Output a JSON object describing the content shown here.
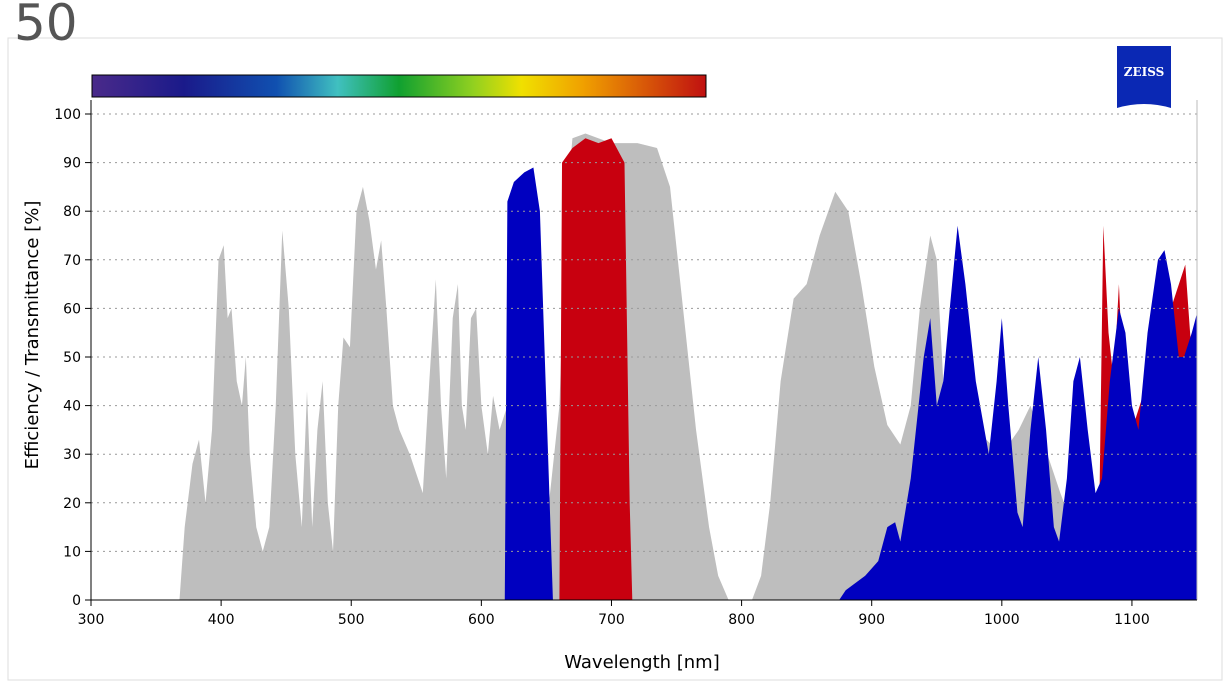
{
  "page_number": "50",
  "logo_text": "ZEISS",
  "chart_data": {
    "type": "area",
    "x_label": "Wavelength [nm]",
    "y_label": "Efficiency / Transmittance [%]",
    "xlim": [
      300,
      1150
    ],
    "ylim": [
      0,
      100
    ],
    "xticks": [
      300,
      400,
      500,
      600,
      700,
      800,
      900,
      1000,
      1100
    ],
    "yticks": [
      0,
      10,
      20,
      30,
      40,
      50,
      60,
      70,
      80,
      90,
      100
    ],
    "grid": true,
    "series": [
      {
        "color": "#bebebe",
        "x": [
          300,
          368,
          372,
          378,
          383,
          388,
          393,
          398,
          402,
          405,
          408,
          412,
          416,
          419,
          422,
          427,
          432,
          437,
          442,
          447,
          452,
          457,
          462,
          466,
          470,
          474,
          478,
          482,
          486,
          490,
          494,
          499,
          504,
          509,
          514,
          519,
          523,
          527,
          532,
          537,
          545,
          555,
          560,
          565,
          569,
          573,
          578,
          582,
          585,
          588,
          592,
          596,
          600,
          605,
          609,
          614,
          620,
          640,
          652,
          660,
          665,
          670,
          680,
          700,
          720,
          735,
          745,
          755,
          765,
          775,
          782,
          790,
          808,
          815,
          822,
          830,
          840,
          850,
          860,
          872,
          882,
          892,
          902,
          912,
          922,
          930,
          937,
          945,
          950,
          955,
          960,
          1000,
          1013,
          1022,
          1035,
          1045,
          1055,
          1070,
          1150
        ],
        "values": [
          0,
          0,
          15,
          28,
          33,
          20,
          35,
          70,
          73,
          58,
          60,
          45,
          40,
          50,
          30,
          15,
          10,
          15,
          40,
          76,
          60,
          30,
          15,
          43,
          15,
          35,
          45,
          20,
          10,
          40,
          54,
          52,
          80,
          85,
          78,
          68,
          74,
          60,
          40,
          35,
          30,
          22,
          45,
          66,
          40,
          25,
          58,
          65,
          40,
          35,
          58,
          60,
          40,
          30,
          42,
          35,
          40,
          30,
          20,
          40,
          80,
          95,
          96,
          94,
          94,
          93,
          85,
          60,
          35,
          15,
          5,
          0,
          0,
          5,
          20,
          45,
          62,
          65,
          75,
          84,
          80,
          65,
          48,
          36,
          32,
          40,
          60,
          75,
          70,
          45,
          40,
          30,
          35,
          40,
          30,
          22,
          15,
          10,
          10
        ]
      },
      {
        "color": "#c8000f",
        "x": [
          660,
          662,
          670,
          680,
          690,
          700,
          710,
          714,
          716,
          1074,
          1075,
          1078,
          1082,
          1086,
          1090,
          1094,
          1100,
          1130,
          1141,
          1146,
          1150
        ],
        "values": [
          0,
          90,
          93,
          95,
          94,
          95,
          90,
          20,
          0,
          0,
          20,
          77,
          55,
          45,
          65,
          40,
          35,
          60,
          69,
          50,
          48
        ]
      },
      {
        "color": "#0000c0",
        "x": [
          618,
          620,
          625,
          633,
          640,
          645,
          650,
          655,
          875,
          880,
          895,
          905,
          912,
          918,
          922,
          930,
          940,
          945,
          950,
          955,
          960,
          966,
          972,
          980,
          990,
          996,
          1000,
          1005,
          1012,
          1016,
          1022,
          1028,
          1034,
          1040,
          1044,
          1050,
          1055,
          1060,
          1066,
          1072,
          1077,
          1083,
          1090,
          1095,
          1100,
          1105,
          1112,
          1120,
          1125,
          1130,
          1136,
          1140,
          1146,
          1150
        ],
        "values": [
          0,
          82,
          86,
          88,
          89,
          80,
          40,
          0,
          0,
          2,
          5,
          8,
          15,
          16,
          12,
          25,
          50,
          58,
          40,
          45,
          60,
          77,
          65,
          45,
          30,
          45,
          58,
          40,
          18,
          15,
          35,
          50,
          35,
          15,
          12,
          25,
          45,
          50,
          35,
          22,
          25,
          45,
          60,
          55,
          40,
          35,
          55,
          70,
          72,
          65,
          50,
          50,
          55,
          59
        ]
      }
    ]
  }
}
